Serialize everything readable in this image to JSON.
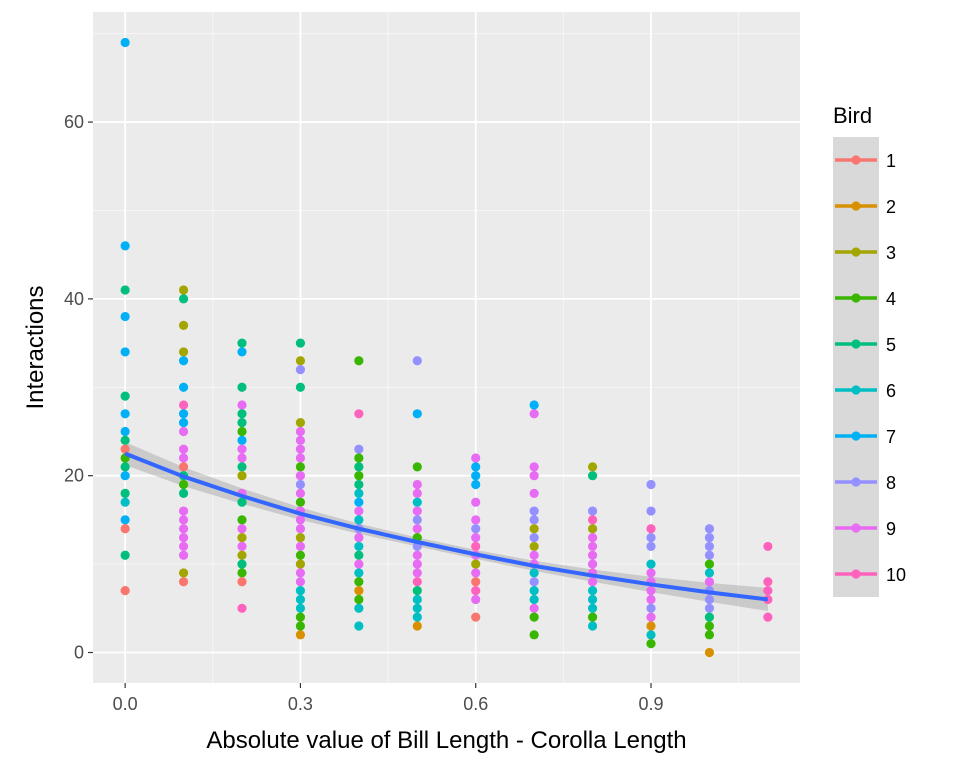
{
  "chart_data": {
    "type": "scatter",
    "title": "",
    "xlabel": "Absolute value of Bill Length - Corolla Length",
    "ylabel": "Interactions",
    "xlim": [
      -0.055,
      1.155
    ],
    "ylim": [
      -3.45,
      72.45
    ],
    "x_ticks": [
      0.0,
      0.3,
      0.6,
      0.9
    ],
    "x_tick_labels": [
      "0.0",
      "0.3",
      "0.6",
      "0.9"
    ],
    "y_ticks": [
      0,
      20,
      40,
      60
    ],
    "y_tick_labels": [
      "0",
      "20",
      "40",
      "60"
    ],
    "grid": true,
    "legend": {
      "title": "Bird",
      "position": "right",
      "entries": [
        "1",
        "2",
        "3",
        "4",
        "5",
        "6",
        "7",
        "8",
        "9",
        "10"
      ],
      "colors": [
        "#F8766D",
        "#D89000",
        "#A3A500",
        "#39B600",
        "#00BF7D",
        "#00BFC4",
        "#00B0F6",
        "#9590FF",
        "#E76BF3",
        "#FF62BC"
      ]
    },
    "points": [
      [
        0.0,
        69,
        "7"
      ],
      [
        0.0,
        46,
        "7"
      ],
      [
        0.0,
        41,
        "5"
      ],
      [
        0.0,
        38,
        "7"
      ],
      [
        0.0,
        34,
        "7"
      ],
      [
        0.0,
        29,
        "5"
      ],
      [
        0.0,
        27,
        "7"
      ],
      [
        0.0,
        25,
        "7"
      ],
      [
        0.0,
        24,
        "5"
      ],
      [
        0.0,
        23,
        "1"
      ],
      [
        0.0,
        22,
        "4"
      ],
      [
        0.0,
        21,
        "5"
      ],
      [
        0.0,
        20,
        "7"
      ],
      [
        0.0,
        18,
        "5"
      ],
      [
        0.0,
        17,
        "6"
      ],
      [
        0.0,
        15,
        "7"
      ],
      [
        0.0,
        14,
        "1"
      ],
      [
        0.0,
        11,
        "5"
      ],
      [
        0.0,
        7,
        "1"
      ],
      [
        0.1,
        41,
        "3"
      ],
      [
        0.1,
        40,
        "5"
      ],
      [
        0.1,
        37,
        "3"
      ],
      [
        0.1,
        34,
        "3"
      ],
      [
        0.1,
        33,
        "7"
      ],
      [
        0.1,
        30,
        "7"
      ],
      [
        0.1,
        28,
        "10"
      ],
      [
        0.1,
        27,
        "7"
      ],
      [
        0.1,
        26,
        "7"
      ],
      [
        0.1,
        25,
        "9"
      ],
      [
        0.1,
        23,
        "9"
      ],
      [
        0.1,
        22,
        "9"
      ],
      [
        0.1,
        21,
        "1"
      ],
      [
        0.1,
        20,
        "5"
      ],
      [
        0.1,
        19,
        "4"
      ],
      [
        0.1,
        18,
        "5"
      ],
      [
        0.1,
        16,
        "9"
      ],
      [
        0.1,
        15,
        "9"
      ],
      [
        0.1,
        14,
        "9"
      ],
      [
        0.1,
        13,
        "9"
      ],
      [
        0.1,
        12,
        "9"
      ],
      [
        0.1,
        11,
        "9"
      ],
      [
        0.1,
        9,
        "3"
      ],
      [
        0.1,
        8,
        "1"
      ],
      [
        0.2,
        35,
        "5"
      ],
      [
        0.2,
        34,
        "7"
      ],
      [
        0.2,
        30,
        "5"
      ],
      [
        0.2,
        28,
        "9"
      ],
      [
        0.2,
        27,
        "5"
      ],
      [
        0.2,
        26,
        "5"
      ],
      [
        0.2,
        25,
        "4"
      ],
      [
        0.2,
        24,
        "7"
      ],
      [
        0.2,
        23,
        "9"
      ],
      [
        0.2,
        22,
        "9"
      ],
      [
        0.2,
        21,
        "5"
      ],
      [
        0.2,
        20,
        "3"
      ],
      [
        0.2,
        18,
        "9"
      ],
      [
        0.2,
        17,
        "5"
      ],
      [
        0.2,
        15,
        "4"
      ],
      [
        0.2,
        14,
        "9"
      ],
      [
        0.2,
        13,
        "3"
      ],
      [
        0.2,
        12,
        "9"
      ],
      [
        0.2,
        11,
        "3"
      ],
      [
        0.2,
        10,
        "5"
      ],
      [
        0.2,
        9,
        "4"
      ],
      [
        0.2,
        8,
        "1"
      ],
      [
        0.2,
        5,
        "10"
      ],
      [
        0.3,
        35,
        "5"
      ],
      [
        0.3,
        33,
        "3"
      ],
      [
        0.3,
        32,
        "8"
      ],
      [
        0.3,
        30,
        "5"
      ],
      [
        0.3,
        26,
        "3"
      ],
      [
        0.3,
        25,
        "9"
      ],
      [
        0.3,
        24,
        "9"
      ],
      [
        0.3,
        23,
        "9"
      ],
      [
        0.3,
        22,
        "9"
      ],
      [
        0.3,
        21,
        "4"
      ],
      [
        0.3,
        20,
        "9"
      ],
      [
        0.3,
        19,
        "8"
      ],
      [
        0.3,
        18,
        "9"
      ],
      [
        0.3,
        17,
        "4"
      ],
      [
        0.3,
        16,
        "9"
      ],
      [
        0.3,
        15,
        "9"
      ],
      [
        0.3,
        14,
        "9"
      ],
      [
        0.3,
        13,
        "3"
      ],
      [
        0.3,
        12,
        "9"
      ],
      [
        0.3,
        11,
        "4"
      ],
      [
        0.3,
        10,
        "3"
      ],
      [
        0.3,
        9,
        "9"
      ],
      [
        0.3,
        8,
        "9"
      ],
      [
        0.3,
        7,
        "6"
      ],
      [
        0.3,
        6,
        "6"
      ],
      [
        0.3,
        5,
        "6"
      ],
      [
        0.3,
        4,
        "4"
      ],
      [
        0.3,
        3,
        "4"
      ],
      [
        0.3,
        2,
        "2"
      ],
      [
        0.4,
        33,
        "4"
      ],
      [
        0.4,
        27,
        "10"
      ],
      [
        0.4,
        23,
        "8"
      ],
      [
        0.4,
        22,
        "4"
      ],
      [
        0.4,
        21,
        "5"
      ],
      [
        0.4,
        20,
        "4"
      ],
      [
        0.4,
        19,
        "5"
      ],
      [
        0.4,
        18,
        "6"
      ],
      [
        0.4,
        17,
        "7"
      ],
      [
        0.4,
        16,
        "9"
      ],
      [
        0.4,
        15,
        "6"
      ],
      [
        0.4,
        14,
        "8"
      ],
      [
        0.4,
        13,
        "9"
      ],
      [
        0.4,
        12,
        "6"
      ],
      [
        0.4,
        11,
        "5"
      ],
      [
        0.4,
        10,
        "9"
      ],
      [
        0.4,
        9,
        "6"
      ],
      [
        0.4,
        8,
        "4"
      ],
      [
        0.4,
        7,
        "2"
      ],
      [
        0.4,
        6,
        "4"
      ],
      [
        0.4,
        5,
        "6"
      ],
      [
        0.4,
        3,
        "6"
      ],
      [
        0.5,
        33,
        "8"
      ],
      [
        0.5,
        27,
        "7"
      ],
      [
        0.5,
        21,
        "4"
      ],
      [
        0.5,
        19,
        "9"
      ],
      [
        0.5,
        18,
        "9"
      ],
      [
        0.5,
        17,
        "6"
      ],
      [
        0.5,
        16,
        "9"
      ],
      [
        0.5,
        15,
        "8"
      ],
      [
        0.5,
        14,
        "9"
      ],
      [
        0.5,
        13,
        "4"
      ],
      [
        0.5,
        12,
        "8"
      ],
      [
        0.5,
        11,
        "9"
      ],
      [
        0.5,
        10,
        "9"
      ],
      [
        0.5,
        9,
        "9"
      ],
      [
        0.5,
        8,
        "10"
      ],
      [
        0.5,
        7,
        "5"
      ],
      [
        0.5,
        6,
        "6"
      ],
      [
        0.5,
        5,
        "6"
      ],
      [
        0.5,
        4,
        "6"
      ],
      [
        0.5,
        3,
        "2"
      ],
      [
        0.6,
        22,
        "9"
      ],
      [
        0.6,
        21,
        "7"
      ],
      [
        0.6,
        20,
        "7"
      ],
      [
        0.6,
        19,
        "7"
      ],
      [
        0.6,
        17,
        "9"
      ],
      [
        0.6,
        15,
        "9"
      ],
      [
        0.6,
        14,
        "8"
      ],
      [
        0.6,
        13,
        "9"
      ],
      [
        0.6,
        12,
        "10"
      ],
      [
        0.6,
        11,
        "9"
      ],
      [
        0.6,
        10,
        "3"
      ],
      [
        0.6,
        9,
        "9"
      ],
      [
        0.6,
        8,
        "1"
      ],
      [
        0.6,
        7,
        "10"
      ],
      [
        0.6,
        6,
        "9"
      ],
      [
        0.6,
        4,
        "1"
      ],
      [
        0.7,
        28,
        "7"
      ],
      [
        0.7,
        27,
        "9"
      ],
      [
        0.7,
        21,
        "9"
      ],
      [
        0.7,
        20,
        "9"
      ],
      [
        0.7,
        18,
        "9"
      ],
      [
        0.7,
        16,
        "8"
      ],
      [
        0.7,
        15,
        "8"
      ],
      [
        0.7,
        14,
        "3"
      ],
      [
        0.7,
        13,
        "8"
      ],
      [
        0.7,
        12,
        "3"
      ],
      [
        0.7,
        11,
        "9"
      ],
      [
        0.7,
        10,
        "9"
      ],
      [
        0.7,
        9,
        "6"
      ],
      [
        0.7,
        8,
        "8"
      ],
      [
        0.7,
        7,
        "6"
      ],
      [
        0.7,
        6,
        "6"
      ],
      [
        0.7,
        5,
        "9"
      ],
      [
        0.7,
        4,
        "4"
      ],
      [
        0.7,
        2,
        "4"
      ],
      [
        0.8,
        21,
        "3"
      ],
      [
        0.8,
        20,
        "5"
      ],
      [
        0.8,
        16,
        "8"
      ],
      [
        0.8,
        15,
        "10"
      ],
      [
        0.8,
        14,
        "3"
      ],
      [
        0.8,
        13,
        "9"
      ],
      [
        0.8,
        12,
        "9"
      ],
      [
        0.8,
        11,
        "9"
      ],
      [
        0.8,
        10,
        "9"
      ],
      [
        0.8,
        9,
        "9"
      ],
      [
        0.8,
        8,
        "9"
      ],
      [
        0.8,
        7,
        "6"
      ],
      [
        0.8,
        6,
        "6"
      ],
      [
        0.8,
        5,
        "6"
      ],
      [
        0.8,
        4,
        "4"
      ],
      [
        0.8,
        3,
        "6"
      ],
      [
        0.9,
        19,
        "8"
      ],
      [
        0.9,
        16,
        "8"
      ],
      [
        0.9,
        14,
        "10"
      ],
      [
        0.9,
        13,
        "8"
      ],
      [
        0.9,
        12,
        "8"
      ],
      [
        0.9,
        10,
        "6"
      ],
      [
        0.9,
        9,
        "9"
      ],
      [
        0.9,
        8,
        "9"
      ],
      [
        0.9,
        7,
        "9"
      ],
      [
        0.9,
        6,
        "9"
      ],
      [
        0.9,
        5,
        "8"
      ],
      [
        0.9,
        4,
        "9"
      ],
      [
        0.9,
        3,
        "2"
      ],
      [
        0.9,
        2,
        "6"
      ],
      [
        0.9,
        1,
        "4"
      ],
      [
        1.0,
        14,
        "8"
      ],
      [
        1.0,
        13,
        "8"
      ],
      [
        1.0,
        12,
        "8"
      ],
      [
        1.0,
        11,
        "8"
      ],
      [
        1.0,
        10,
        "4"
      ],
      [
        1.0,
        9,
        "6"
      ],
      [
        1.0,
        8,
        "9"
      ],
      [
        1.0,
        7,
        "8"
      ],
      [
        1.0,
        6,
        "8"
      ],
      [
        1.0,
        5,
        "8"
      ],
      [
        1.0,
        4,
        "5"
      ],
      [
        1.0,
        3,
        "4"
      ],
      [
        1.0,
        2,
        "4"
      ],
      [
        1.0,
        0,
        "2"
      ],
      [
        1.1,
        12,
        "10"
      ],
      [
        1.1,
        8,
        "10"
      ],
      [
        1.1,
        7,
        "10"
      ],
      [
        1.1,
        6,
        "10"
      ],
      [
        1.1,
        4,
        "10"
      ]
    ],
    "trend": {
      "x": [
        0.0,
        0.1,
        0.2,
        0.3,
        0.4,
        0.5,
        0.6,
        0.7,
        0.8,
        0.9,
        1.0,
        1.1
      ],
      "y": [
        22.5,
        19.9,
        17.7,
        15.7,
        14.0,
        12.5,
        11.1,
        9.8,
        8.7,
        7.7,
        6.8,
        6.0
      ],
      "color": "#3366FF"
    },
    "colors": {
      "panel_bg": "#EBEBEB",
      "grid_major": "#FFFFFF",
      "legend_key_bg": "#D9D9D9",
      "ribbon": "#999999"
    }
  }
}
